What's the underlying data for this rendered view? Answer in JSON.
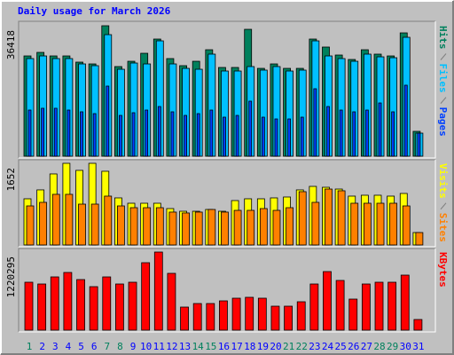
{
  "chart_data": [
    {
      "type": "bar",
      "title": "Daily usage for March 2026",
      "ylim": [
        0,
        36418
      ],
      "yticks": [
        36418
      ],
      "series": [
        {
          "name": "Hits",
          "color": "#00805c",
          "values": [
            27990,
            28980,
            27990,
            27990,
            26260,
            25760,
            36418,
            25020,
            26500,
            28730,
            32700,
            27250,
            25270,
            26500,
            29720,
            24770,
            24770,
            35420,
            24520,
            25760,
            24520,
            24520,
            32700,
            30470,
            28240,
            27000,
            29720,
            28490,
            27990,
            34430,
            6940
          ]
        },
        {
          "name": "Files",
          "color": "#00c0ff",
          "values": [
            27250,
            27990,
            27250,
            27250,
            25760,
            25270,
            33930,
            24270,
            26010,
            25760,
            32200,
            25760,
            24520,
            24270,
            28490,
            23780,
            23780,
            25020,
            24030,
            25020,
            23780,
            24030,
            32200,
            27990,
            27250,
            26500,
            28490,
            27740,
            27490,
            33190,
            6440
          ]
        },
        {
          "name": "Pages",
          "color": "#0040ff",
          "values": [
            12880,
            13380,
            13380,
            12880,
            12390,
            11890,
            19570,
            11390,
            12140,
            12880,
            13870,
            12390,
            11390,
            11890,
            12880,
            10900,
            11390,
            15360,
            10900,
            10400,
            10400,
            10900,
            18830,
            13870,
            12880,
            12390,
            12880,
            14860,
            12390,
            19820,
            6440
          ]
        }
      ]
    },
    {
      "type": "bar",
      "ylim": [
        0,
        1652
      ],
      "yticks": [
        1652
      ],
      "series": [
        {
          "name": "Visits",
          "color": "#ffff00",
          "values": [
            934,
            1114,
            1437,
            1652,
            1509,
            1652,
            1491,
            952,
            844,
            844,
            844,
            736,
            682,
            682,
            718,
            682,
            898,
            934,
            934,
            952,
            970,
            1114,
            1185,
            1167,
            1131,
            988,
            1006,
            1006,
            988,
            1042,
            251
          ]
        },
        {
          "name": "Sites",
          "color": "#ff8000",
          "values": [
            790,
            862,
            1024,
            1024,
            826,
            826,
            988,
            790,
            754,
            754,
            754,
            665,
            647,
            665,
            718,
            665,
            700,
            700,
            736,
            700,
            754,
            1078,
            862,
            1131,
            1096,
            844,
            844,
            844,
            844,
            790,
            251
          ]
        }
      ]
    },
    {
      "type": "bar",
      "ylim": [
        0,
        1220295
      ],
      "yticks": [
        1220295
      ],
      "categories": [
        "1",
        "2",
        "3",
        "4",
        "5",
        "6",
        "7",
        "8",
        "9",
        "10",
        "11",
        "12",
        "13",
        "14",
        "15",
        "16",
        "17",
        "18",
        "19",
        "20",
        "21",
        "22",
        "23",
        "24",
        "25",
        "26",
        "27",
        "28",
        "29",
        "30",
        "31"
      ],
      "category_colors": [
        "#00805c",
        "#0000ff",
        "#0000ff",
        "#0000ff",
        "#0000ff",
        "#0000ff",
        "#00805c",
        "#00805c",
        "#0000ff",
        "#0000ff",
        "#0000ff",
        "#0000ff",
        "#0000ff",
        "#00805c",
        "#00805c",
        "#0000ff",
        "#0000ff",
        "#0000ff",
        "#0000ff",
        "#0000ff",
        "#00805c",
        "#00805c",
        "#0000ff",
        "#0000ff",
        "#0000ff",
        "#0000ff",
        "#0000ff",
        "#00805c",
        "#00805c",
        "#0000ff",
        "#0000ff"
      ],
      "series": [
        {
          "name": "KBytes",
          "color": "#ff0000",
          "values": [
            748800,
            721100,
            832000,
            901400,
            790400,
            679500,
            832000,
            721100,
            748800,
            1053900,
            1220295,
            887500,
            360500,
            416000,
            416000,
            457600,
            499200,
            513100,
            499200,
            374400,
            374400,
            443700,
            721100,
            915200,
            776600,
            485300,
            721100,
            748800,
            748800,
            859800,
            166400
          ]
        }
      ]
    }
  ]
}
